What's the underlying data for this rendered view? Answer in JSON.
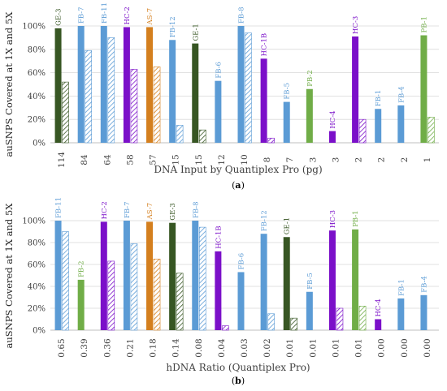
{
  "chart_data": [
    {
      "type": "bar",
      "panel_label": "(a)",
      "xlabel": "DNA Input by Quantiplex Pro (pg)",
      "ylabel": "auSNPS Covered at 1X and 5X",
      "ylim": [
        0,
        100
      ],
      "yticks": [
        "0%",
        "20%",
        "40%",
        "60%",
        "80%",
        "100%"
      ],
      "grid": true,
      "series_1x": "solid bars",
      "series_5x": "hatched bars",
      "categories": [
        "114",
        "84",
        "64",
        "58",
        "57",
        "15",
        "15",
        "12",
        "10",
        "8",
        "7",
        "3",
        "3",
        "2",
        "2",
        "2",
        "1"
      ],
      "sample_labels": [
        "GE-3",
        "FB-7",
        "FB-11",
        "HC-2",
        "AS-7",
        "FB-12",
        "GE-1",
        "FB-6",
        "FB-8",
        "HC-1B",
        "FB-5",
        "PB-2",
        "HC-4",
        "HC-3",
        "FB-1",
        "FB-4",
        "PB-1"
      ],
      "values_1x": [
        98,
        100,
        100,
        99,
        99,
        88,
        85,
        53,
        100,
        72,
        35,
        46,
        10,
        91,
        29,
        32,
        92
      ],
      "values_5x": [
        52,
        79,
        90,
        63,
        65,
        15,
        11,
        0,
        94,
        4,
        0,
        0,
        0,
        20,
        0,
        0,
        22
      ]
    },
    {
      "type": "bar",
      "panel_label": "(b)",
      "xlabel": "hDNA Ratio (Quantiplex Pro)",
      "ylabel": "auSNPS Covered at 1X and 5X",
      "ylim": [
        0,
        100
      ],
      "yticks": [
        "0%",
        "20%",
        "40%",
        "60%",
        "80%",
        "100%"
      ],
      "grid": true,
      "series_1x": "solid bars",
      "series_5x": "hatched bars",
      "categories": [
        "0.65",
        "0.39",
        "0.36",
        "0.21",
        "0.18",
        "0.14",
        "0.08",
        "0.04",
        "0.03",
        "0.02",
        "0.01",
        "0.01",
        "0.01",
        "0.01",
        "0.00",
        "0.00",
        "0.00"
      ],
      "sample_labels": [
        "FB-11",
        "PB-2",
        "HC-2",
        "FB-7",
        "AS-7",
        "GE-3",
        "FB-8",
        "HC-1B",
        "FB-6",
        "FB-12",
        "GE-1",
        "FB-5",
        "HC-3",
        "PB-1",
        "HC-4",
        "FB-1",
        "FB-4"
      ],
      "values_1x": [
        100,
        46,
        99,
        100,
        99,
        98,
        100,
        72,
        53,
        88,
        85,
        35,
        91,
        92,
        10,
        29,
        32
      ],
      "values_5x": [
        90,
        0,
        63,
        79,
        65,
        52,
        94,
        4,
        0,
        15,
        11,
        0,
        20,
        22,
        0,
        0,
        0
      ]
    }
  ],
  "colors": {
    "FB": "#5b9bd5",
    "GE": "#375623",
    "HC": "#7b10c9",
    "AS": "#d47f1e",
    "PB": "#70ad47",
    "grid": "#d9d9d9",
    "axis": "#bfbfbf",
    "text": "#404040"
  }
}
